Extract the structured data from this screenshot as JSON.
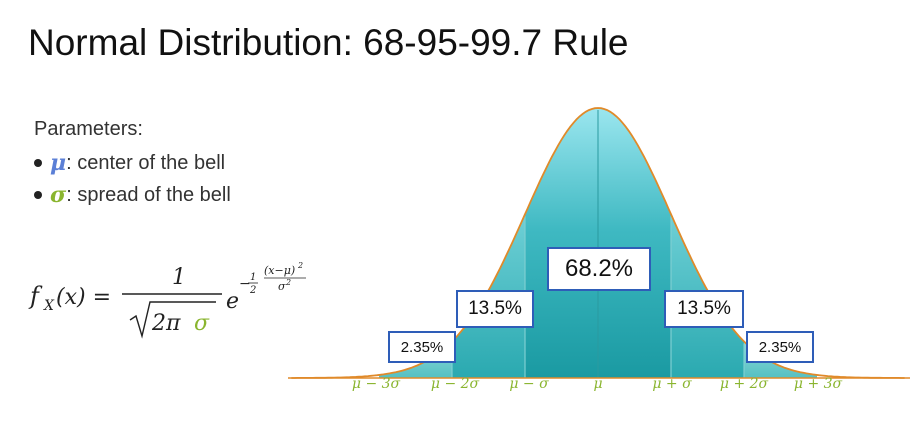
{
  "title": "Normal Distribution: 68-95-99.7 Rule",
  "parameters": {
    "heading": "Parameters:",
    "items": [
      {
        "symbol": "μ",
        "text": ": center of the bell",
        "color": "#5b7fd6"
      },
      {
        "symbol": "σ",
        "text": ": spread of the bell",
        "color": "#8ab52f"
      }
    ]
  },
  "formula": {
    "lhs": "f",
    "subscript": "X",
    "arg": "(x) =",
    "numerator": "1",
    "denominator": "2π",
    "sigma": "σ",
    "base": "e",
    "exp_sign": "−",
    "exp_half_num": "1",
    "exp_half_den": "2",
    "exp_num": "(x−μ)",
    "exp_num_pow": "2",
    "exp_den": "σ",
    "exp_den_pow": "2"
  },
  "region_labels": [
    {
      "id": "left-3",
      "text": "2.35%",
      "percent": 2.35
    },
    {
      "id": "left-2",
      "text": "13.5%",
      "percent": 13.5
    },
    {
      "id": "center",
      "text": "68.2%",
      "percent": 68.2
    },
    {
      "id": "right-2",
      "text": "13.5%",
      "percent": 13.5
    },
    {
      "id": "right-3",
      "text": "2.35%",
      "percent": 2.35
    }
  ],
  "axis_ticks": [
    {
      "text": "μ − 3σ",
      "value": -3
    },
    {
      "text": "μ − 2σ",
      "value": -2
    },
    {
      "text": "μ − σ",
      "value": -1
    },
    {
      "text": "μ",
      "value": 0
    },
    {
      "text": "μ + σ",
      "value": 1
    },
    {
      "text": "μ + 2σ",
      "value": 2
    },
    {
      "text": "μ + 3σ",
      "value": 3
    }
  ],
  "colors": {
    "sigma": "#8ab52f",
    "mu": "#5b7fd6",
    "curve": "#e08a2a",
    "box_border": "#2e5db8",
    "fill_center": "#1fa9b0",
    "fill_mid": "#4bbcc4",
    "fill_tail": "#6ec8c8"
  }
}
